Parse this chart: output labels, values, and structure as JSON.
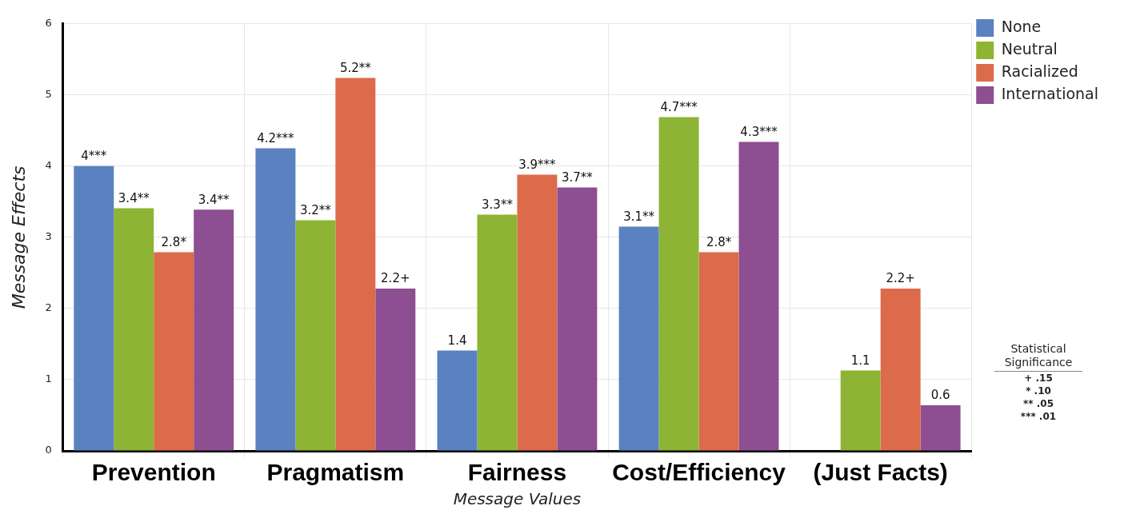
{
  "chart_data": {
    "type": "bar",
    "xlabel": "Message Values",
    "ylabel": "Message Effects",
    "categories": [
      "Prevention",
      "Pragmatism",
      "Fairness",
      "Cost/Efficiency",
      "(Just Facts)"
    ],
    "series": [
      {
        "name": "None",
        "color": "#5b82c0",
        "values": [
          4.0,
          4.25,
          1.41,
          3.15,
          null
        ],
        "value_labels": [
          "4***",
          "4.2***",
          "1.4",
          "3.1**",
          null
        ]
      },
      {
        "name": "Neutral",
        "color": "#8eb435",
        "values": [
          3.41,
          3.24,
          3.32,
          4.69,
          1.13
        ],
        "value_labels": [
          "3.4**",
          "3.2**",
          "3.3**",
          "4.7***",
          "1.1"
        ]
      },
      {
        "name": "Racialized",
        "color": "#dc6b4c",
        "values": [
          2.79,
          5.24,
          3.88,
          2.79,
          2.28
        ],
        "value_labels": [
          "2.8*",
          "5.2**",
          "3.9***",
          "2.8*",
          "2.2+"
        ]
      },
      {
        "name": "International",
        "color": "#8e4e92",
        "values": [
          3.39,
          2.28,
          3.7,
          4.34,
          0.64
        ],
        "value_labels": [
          "3.4**",
          "2.2+",
          "3.7**",
          "4.3***",
          "0.6"
        ]
      }
    ],
    "ylim": [
      0,
      6
    ],
    "yticks": [
      0,
      1,
      2,
      3,
      4,
      5,
      6
    ],
    "grid": true,
    "legend": "right",
    "annotations": [
      "Statistical Significance",
      "+ .15",
      "* .10",
      "** .05",
      "*** .01"
    ]
  }
}
